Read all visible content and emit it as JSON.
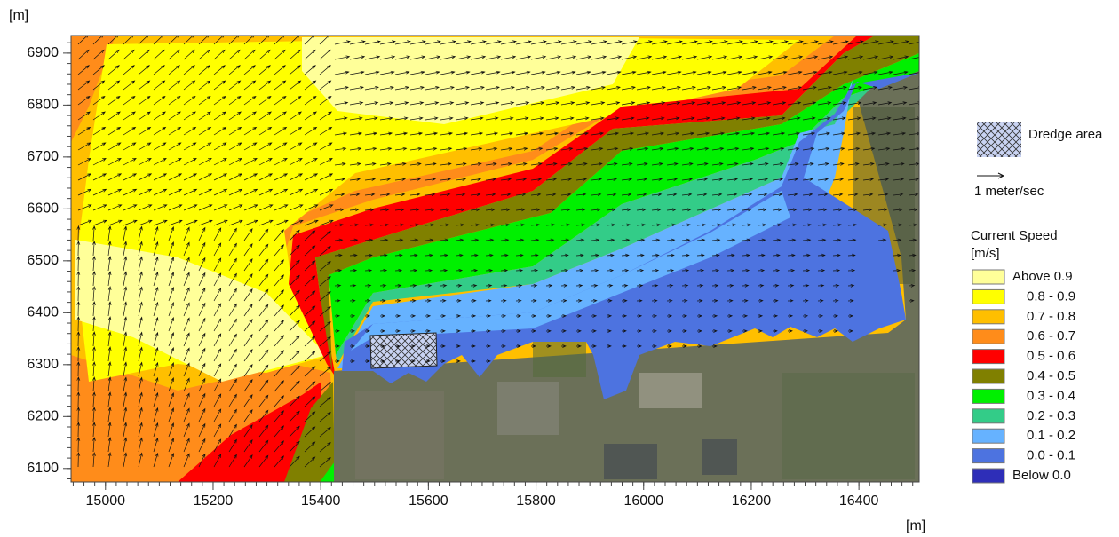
{
  "chart_data": {
    "type": "contour",
    "y_label": "[m]",
    "x_label": "[m]",
    "xlim": [
      14936,
      16512
    ],
    "ylim": [
      6074,
      6934
    ],
    "xticks": [
      15000,
      15200,
      15400,
      15600,
      15800,
      16000,
      16200,
      16400
    ],
    "yticks": [
      6100,
      6200,
      6300,
      6400,
      6500,
      6600,
      6700,
      6800,
      6900
    ],
    "dredge_label": "Dredge area",
    "vector_label": "1 meter/sec",
    "legend_title": "Current Speed",
    "legend_units": "[m/s]",
    "legend": [
      {
        "name": "Above 0.9",
        "color": "#ffff99"
      },
      {
        "name": "0.8 - 0.9",
        "color": "#ffff00"
      },
      {
        "name": "0.7 - 0.8",
        "color": "#ffbf00"
      },
      {
        "name": "0.6 - 0.7",
        "color": "#ff8c1a"
      },
      {
        "name": "0.5 - 0.6",
        "color": "#ff0000"
      },
      {
        "name": "0.4 - 0.5",
        "color": "#808000"
      },
      {
        "name": "0.3 - 0.4",
        "color": "#00f000"
      },
      {
        "name": "0.2 - 0.3",
        "color": "#33cc88"
      },
      {
        "name": "0.1 - 0.2",
        "color": "#66b2ff"
      },
      {
        "name": "0.0 - 0.1",
        "color": "#4d73e0"
      },
      {
        "name": "Below 0.0",
        "color": "#2e2eb8"
      }
    ]
  }
}
